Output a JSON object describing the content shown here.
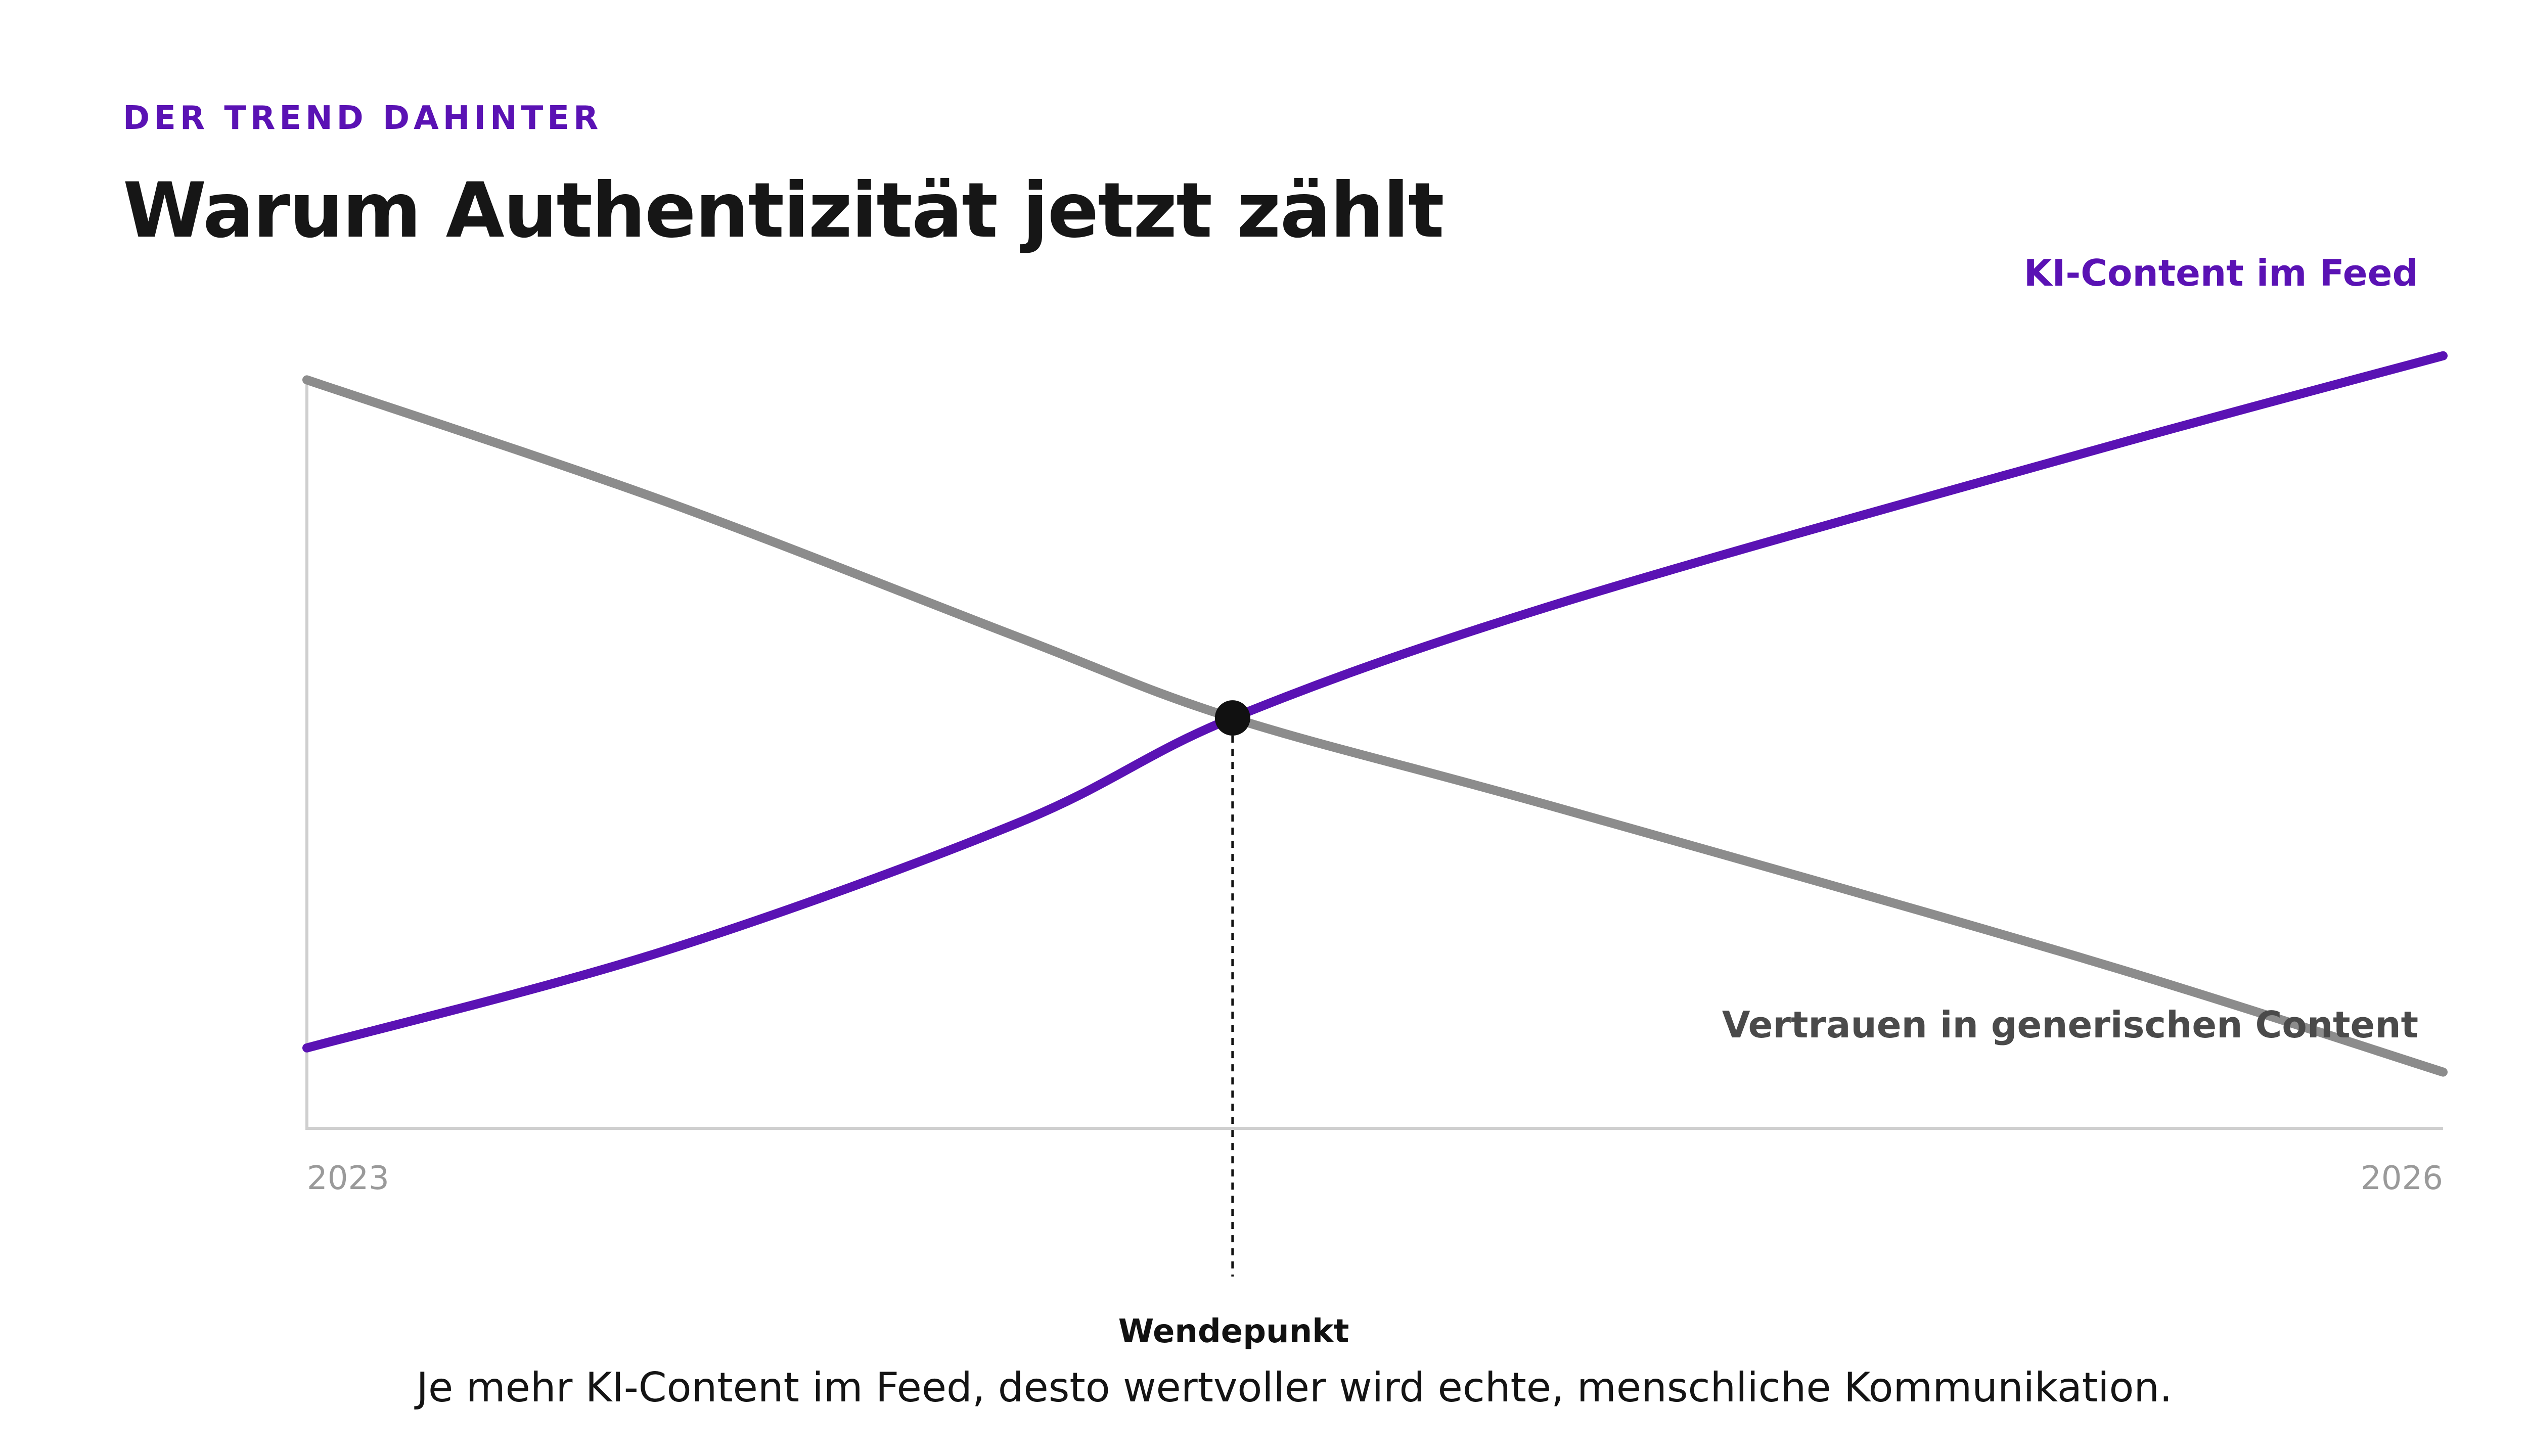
{
  "eyebrow": "DER TREND DAHINTER",
  "headline": "Warum Authentizität jetzt zählt",
  "footer_text": "Je mehr KI-Content im Feed, desto wertvoller wird echte, menschliche Kommunikation.",
  "colors": {
    "accent": "#5a12b4",
    "trust_line": "#8c8c8c",
    "trust_label": "#4a4a4a",
    "axis": "#cfcfcf",
    "tick_text": "#9a9a9a",
    "marker": "#111111"
  },
  "chart_data": {
    "type": "line",
    "title": "Warum Authentizität jetzt zählt",
    "xlabel": "",
    "ylabel": "",
    "x_ticks": [
      "2023",
      "2026"
    ],
    "xlim": [
      2023,
      2026
    ],
    "ylim": [
      0,
      100
    ],
    "grid": false,
    "series": [
      {
        "name": "KI-Content im Feed",
        "color": "#5a12b4",
        "points": [
          [
            2023,
            10
          ],
          [
            2023.5,
            22
          ],
          [
            2024,
            38
          ],
          [
            2024.3,
            51
          ],
          [
            2024.75,
            65
          ],
          [
            2025.5,
            84
          ],
          [
            2026,
            96
          ]
        ]
      },
      {
        "name": "Vertrauen in generischen Content",
        "color": "#8c8c8c",
        "points": [
          [
            2023,
            93
          ],
          [
            2023.5,
            78
          ],
          [
            2024,
            61
          ],
          [
            2024.3,
            51
          ],
          [
            2024.75,
            40
          ],
          [
            2025.5,
            21
          ],
          [
            2026,
            7
          ]
        ]
      }
    ],
    "annotations": [
      {
        "label": "Wendepunkt",
        "x": 2024.3,
        "y": 51
      }
    ]
  }
}
